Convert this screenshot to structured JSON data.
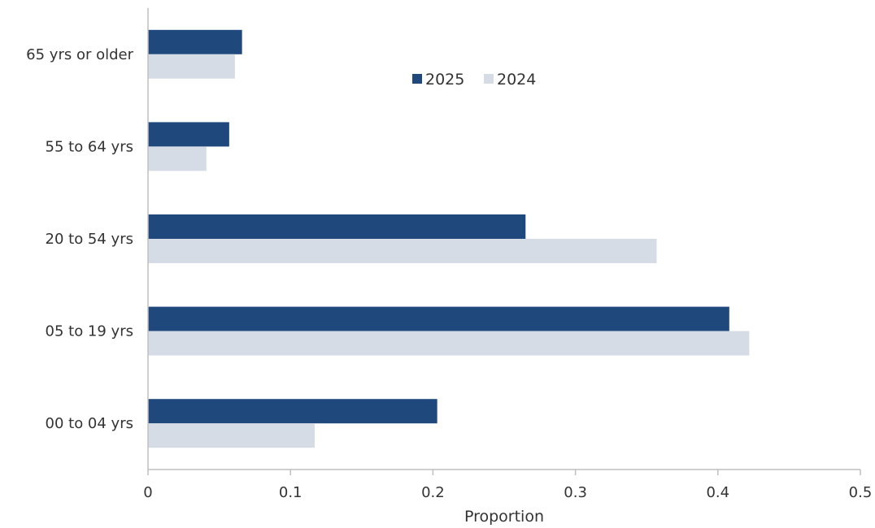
{
  "chart_data": {
    "type": "bar",
    "orientation": "horizontal",
    "categories": [
      "00 to 04 yrs",
      "05 to 19 yrs",
      "20 to 54 yrs",
      "55 to 64 yrs",
      "65 yrs or older"
    ],
    "series": [
      {
        "name": "2025",
        "color": "#1f497d",
        "values": [
          0.203,
          0.408,
          0.265,
          0.057,
          0.066
        ]
      },
      {
        "name": "2024",
        "color": "#d6dce5",
        "values": [
          0.117,
          0.422,
          0.357,
          0.041,
          0.061
        ]
      }
    ],
    "xlabel": "Proportion",
    "ylabel": "",
    "xlim": [
      0,
      0.5
    ],
    "x_ticks": [
      "0",
      "0.1",
      "0.2",
      "0.3",
      "0.4",
      "0.5"
    ],
    "grid": false,
    "legend_position": "top-center"
  }
}
